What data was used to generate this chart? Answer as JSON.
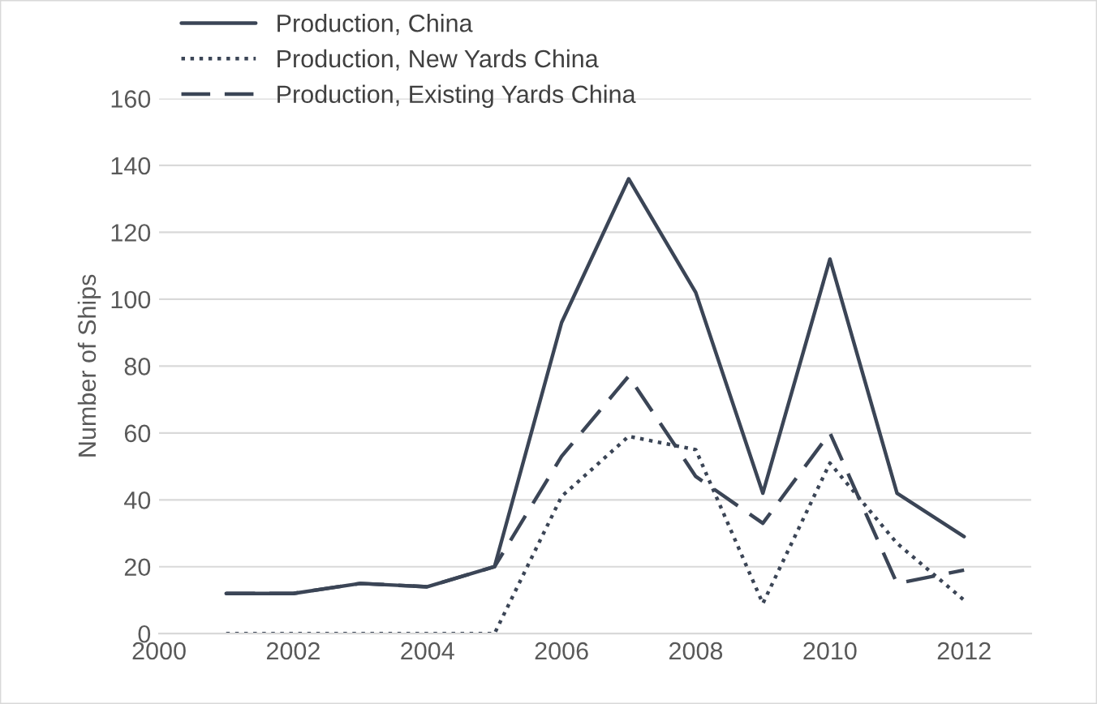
{
  "chart_data": {
    "type": "line",
    "ylabel": "Number of Ships",
    "x": [
      2001,
      2002,
      2003,
      2004,
      2005,
      2006,
      2007,
      2008,
      2009,
      2010,
      2011,
      2012
    ],
    "series": [
      {
        "name": "Production, China",
        "color": "#3b4556",
        "line_style": "solid",
        "values": [
          12,
          12,
          15,
          14,
          20,
          93,
          136,
          102,
          42,
          112,
          42,
          29
        ]
      },
      {
        "name": "Production, New Yards China",
        "color": "#3b4556",
        "line_style": "dotted",
        "values": [
          0,
          0,
          0,
          0,
          0,
          41,
          59,
          55,
          9,
          51,
          27,
          10
        ]
      },
      {
        "name": "Production, Existing Yards China",
        "color": "#3b4556",
        "line_style": "dashed",
        "values": [
          12,
          12,
          15,
          14,
          20,
          53,
          77,
          47,
          33,
          60,
          15,
          19
        ]
      }
    ],
    "xlim": [
      2000,
      2013
    ],
    "xticks": [
      2000,
      2002,
      2004,
      2006,
      2008,
      2010,
      2012
    ],
    "ylim": [
      0,
      160
    ],
    "yticks": [
      0,
      20,
      40,
      60,
      80,
      100,
      120,
      140,
      160
    ],
    "grid": "y",
    "legend": "top left",
    "marker": "none"
  }
}
